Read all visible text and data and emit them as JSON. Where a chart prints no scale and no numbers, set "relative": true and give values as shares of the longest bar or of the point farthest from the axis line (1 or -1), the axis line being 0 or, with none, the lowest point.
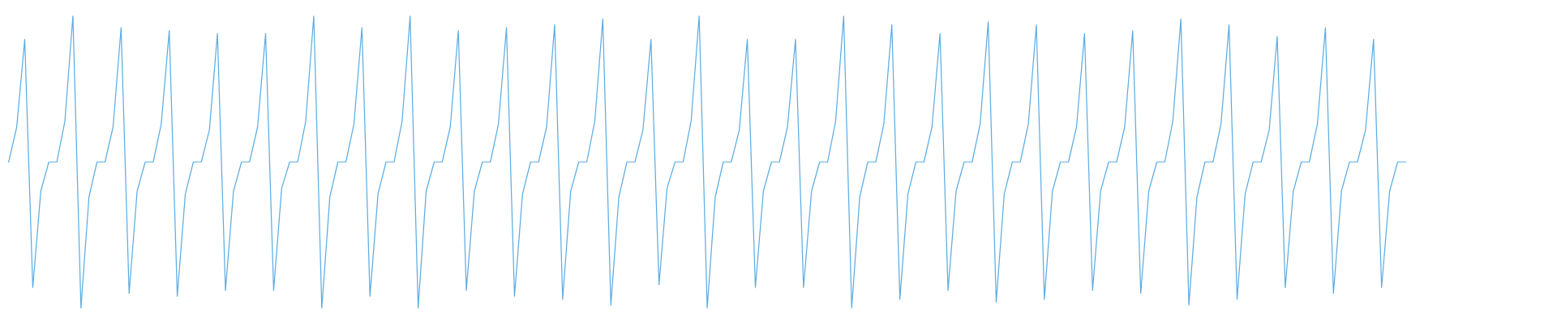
{
  "chart_data": {
    "type": "line",
    "relative": true,
    "categories": [
      null,
      null,
      null,
      null,
      null,
      null,
      null,
      null,
      null,
      null,
      null,
      null,
      null,
      null,
      null,
      null,
      null,
      null,
      null,
      null,
      null,
      null,
      null,
      null,
      null,
      null,
      null,
      null,
      null,
      null,
      null,
      null,
      null,
      null,
      null,
      null,
      null,
      null,
      null,
      null,
      null,
      null,
      null,
      null,
      null,
      null,
      null,
      null,
      null,
      null,
      null,
      null,
      null,
      null,
      null,
      null,
      null,
      null,
      null,
      null,
      null,
      null,
      null,
      null,
      null,
      null,
      null,
      null,
      null,
      null,
      null,
      null,
      null,
      null,
      null,
      null,
      null,
      null,
      null,
      null,
      null,
      null,
      null,
      null,
      null,
      null,
      null,
      null,
      null,
      null,
      null,
      null,
      null,
      null,
      null,
      null,
      null,
      null,
      null,
      null,
      null,
      null,
      null,
      null,
      null,
      null,
      null,
      null,
      null,
      null,
      null,
      null,
      null,
      null,
      null,
      null,
      null,
      null,
      null,
      null,
      null,
      null,
      null,
      null,
      null,
      null,
      null,
      null,
      null,
      null,
      null,
      null,
      null,
      null,
      null,
      null,
      null,
      null,
      null,
      null,
      null,
      null,
      null,
      null,
      null,
      null,
      null,
      null,
      null,
      null,
      null,
      null,
      null,
      null,
      null,
      null,
      null,
      null,
      null,
      null,
      null,
      null,
      null,
      null,
      null,
      null,
      null,
      null,
      null,
      null,
      null,
      null,
      null,
      null,
      null
    ],
    "series": [
      {
        "color": "#5dade2",
        "values": [
          0.5,
          0.62,
          0.92,
          0.07,
          0.4,
          0.5,
          0.5,
          0.64,
          1,
          0,
          0.38,
          0.5,
          0.5,
          0.62,
          0.96,
          0.05,
          0.4,
          0.5,
          0.5,
          0.63,
          0.95,
          0.04,
          0.39,
          0.5,
          0.5,
          0.61,
          0.94,
          0.06,
          0.4,
          0.5,
          0.5,
          0.62,
          0.94,
          0.06,
          0.41,
          0.5,
          0.5,
          0.64,
          1,
          0,
          0.38,
          0.5,
          0.5,
          0.63,
          0.96,
          0.04,
          0.39,
          0.5,
          0.5,
          0.64,
          1,
          0,
          0.4,
          0.5,
          0.5,
          0.62,
          0.95,
          0.06,
          0.4,
          0.5,
          0.5,
          0.63,
          0.96,
          0.04,
          0.39,
          0.5,
          0.5,
          0.62,
          0.97,
          0.03,
          0.4,
          0.5,
          0.5,
          0.64,
          0.99,
          0.01,
          0.38,
          0.5,
          0.5,
          0.61,
          0.92,
          0.08,
          0.41,
          0.5,
          0.5,
          0.64,
          1,
          0,
          0.38,
          0.5,
          0.5,
          0.61,
          0.92,
          0.07,
          0.4,
          0.5,
          0.5,
          0.62,
          0.92,
          0.07,
          0.4,
          0.5,
          0.5,
          0.64,
          1,
          0,
          0.38,
          0.5,
          0.5,
          0.63,
          0.97,
          0.03,
          0.39,
          0.5,
          0.5,
          0.62,
          0.94,
          0.06,
          0.4,
          0.5,
          0.5,
          0.63,
          0.98,
          0.02,
          0.39,
          0.5,
          0.5,
          0.63,
          0.97,
          0.03,
          0.4,
          0.5,
          0.5,
          0.62,
          0.94,
          0.06,
          0.4,
          0.5,
          0.5,
          0.62,
          0.95,
          0.05,
          0.4,
          0.5,
          0.5,
          0.64,
          0.99,
          0.01,
          0.38,
          0.5,
          0.5,
          0.63,
          0.97,
          0.03,
          0.39,
          0.5,
          0.5,
          0.61,
          0.93,
          0.07,
          0.4,
          0.5,
          0.5,
          0.63,
          0.96,
          0.05,
          0.4,
          0.5,
          0.5,
          0.61,
          0.92,
          0.07,
          0.4,
          0.5,
          0.5
        ]
      }
    ]
  }
}
